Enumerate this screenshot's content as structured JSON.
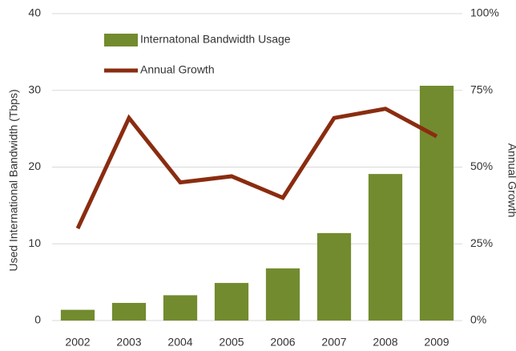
{
  "chart_data": {
    "type": "bar_line",
    "y_label": "Used International Bandwidth (Tbps)",
    "y2_label": "Annual Growth",
    "categories": [
      "2002",
      "2003",
      "2004",
      "2005",
      "2006",
      "2007",
      "2008",
      "2009"
    ],
    "series": [
      {
        "name": "Internatonal Bandwidth Usage",
        "type": "bar",
        "color": "#728b2f",
        "values": [
          1.4,
          2.3,
          3.3,
          4.9,
          6.8,
          11.4,
          19.1,
          30.6
        ]
      },
      {
        "name": "Annual Growth",
        "type": "line",
        "axis": "y2",
        "color": "#8a2c10",
        "values": [
          30,
          66,
          45,
          47,
          40,
          66,
          69,
          60
        ]
      }
    ],
    "ylim": [
      0,
      40
    ],
    "yticks": [
      0,
      10,
      20,
      30,
      40
    ],
    "y2lim": [
      0,
      100
    ],
    "y2ticks": [
      {
        "value": 0,
        "label": "0%"
      },
      {
        "value": 25,
        "label": "25%"
      },
      {
        "value": 50,
        "label": "50%"
      },
      {
        "value": 75,
        "label": "75%"
      },
      {
        "value": 100,
        "label": "100%"
      }
    ],
    "grid": true
  }
}
